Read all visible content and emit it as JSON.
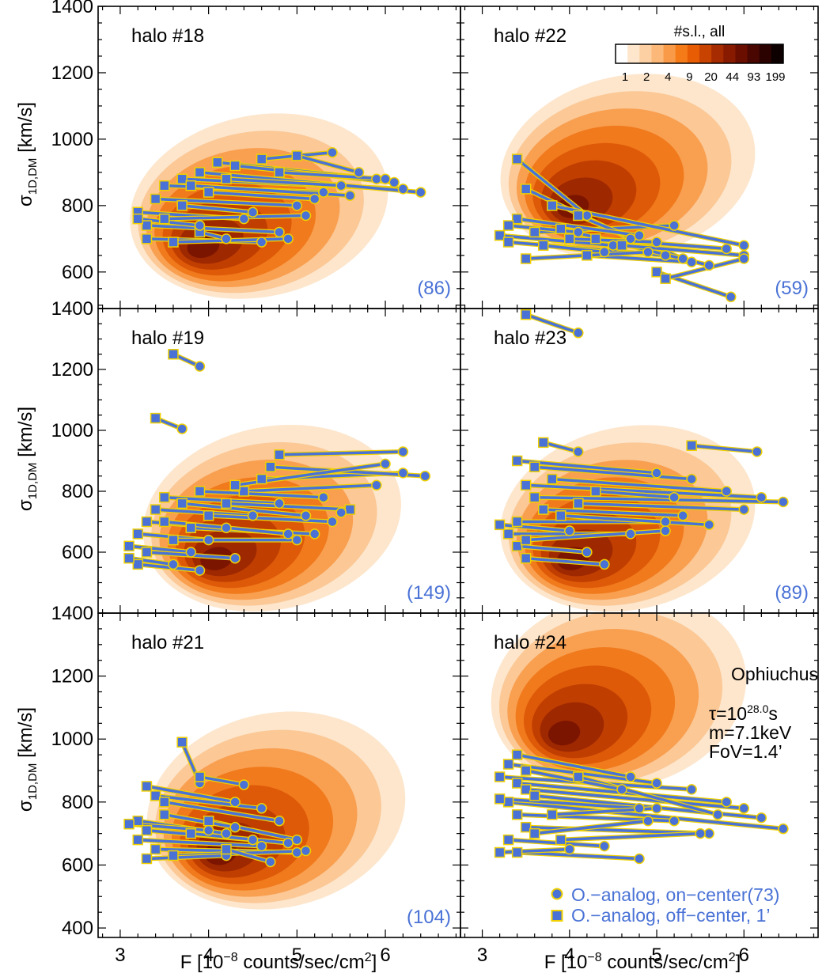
{
  "figure": {
    "x_axis_label": "F [10",
    "x_axis_label_exp": "−8",
    "x_axis_label_tail": " counts/sec/cm",
    "x_axis_label_sq": "2",
    "x_axis_label_end": "]",
    "y_axis_label": "σ",
    "y_axis_label_sub": "1D,DM",
    "y_axis_label_tail": " [km/s]",
    "colorbar_title": "#s.l., all",
    "colorbar_ticks": [
      "1",
      "2",
      "4",
      "9",
      "20",
      "44",
      "93",
      "199"
    ],
    "colorbar_colors": [
      "#ffffff",
      "#fde6cc",
      "#fcd0a3",
      "#fbb878",
      "#f99a48",
      "#f57a18",
      "#e85d04",
      "#c94300",
      "#a62b00",
      "#881a00",
      "#6a0e00",
      "#4a0600",
      "#2c0200",
      "#0d0000"
    ],
    "series_color": "#4a72d6",
    "series_edge": "#f0d000",
    "contour_colors": [
      "#fde6cc",
      "#fbc896",
      "#f99f50",
      "#f07a1c",
      "#de5a08",
      "#c03e00",
      "#9e2800",
      "#7c1500"
    ],
    "annotation_source": "Ophiuchus",
    "annotation_tau_prefix": "τ=10",
    "annotation_tau_exp": "28.0",
    "annotation_tau_unit": "s",
    "annotation_mass": "m=7.1keV",
    "annotation_fov": "FoV=1.4’",
    "legend_on": "O.−analog, on−center(73)",
    "legend_off": "O.−analog, off−center, 1’",
    "x_ticks": [
      "3",
      "4",
      "5",
      "6"
    ],
    "y_ticks_top": [
      "600",
      "800",
      "1000",
      "1200",
      "1400"
    ],
    "y_ticks_middle": [
      "600",
      "800",
      "1000",
      "1200",
      "1400"
    ],
    "y_ticks_bottom": [
      "400",
      "600",
      "800",
      "1000",
      "1200",
      "1400"
    ]
  },
  "chart_data": [
    {
      "type": "scatter",
      "panel": "top-left",
      "title": "halo #18",
      "count_label": "(86)",
      "xlim": [
        2.75,
        6.85
      ],
      "ylim": [
        490,
        1400
      ],
      "density_peak": {
        "x": 3.85,
        "y": 660
      },
      "pairs": [
        [
          3.2,
          780,
          4.4,
          760
        ],
        [
          3.3,
          740,
          4.8,
          720
        ],
        [
          3.4,
          820,
          5.0,
          800
        ],
        [
          3.5,
          860,
          5.3,
          840
        ],
        [
          3.7,
          880,
          6.2,
          850
        ],
        [
          3.9,
          900,
          6.4,
          840
        ],
        [
          4.1,
          930,
          5.9,
          880
        ],
        [
          4.2,
          880,
          5.5,
          860
        ],
        [
          3.3,
          700,
          4.6,
          690
        ],
        [
          3.6,
          690,
          4.9,
          700
        ],
        [
          3.7,
          800,
          4.5,
          780
        ],
        [
          4.0,
          840,
          5.2,
          820
        ],
        [
          4.3,
          920,
          6.1,
          870
        ],
        [
          4.6,
          940,
          5.4,
          960
        ],
        [
          5.0,
          950,
          5.7,
          900
        ],
        [
          4.8,
          900,
          6.0,
          880
        ],
        [
          3.5,
          760,
          5.1,
          770
        ],
        [
          3.9,
          720,
          4.2,
          700
        ],
        [
          3.2,
          760,
          3.9,
          740
        ],
        [
          3.8,
          860,
          5.6,
          830
        ]
      ]
    },
    {
      "type": "scatter",
      "panel": "top-right",
      "title": "halo #22",
      "count_label": "(59)",
      "xlim": [
        2.75,
        6.85
      ],
      "ylim": [
        490,
        1400
      ],
      "density_peak": {
        "x": 3.95,
        "y": 780
      },
      "pairs": [
        [
          3.4,
          940,
          4.2,
          770
        ],
        [
          3.5,
          850,
          4.7,
          700
        ],
        [
          3.2,
          710,
          4.5,
          680
        ],
        [
          3.3,
          690,
          5.1,
          650
        ],
        [
          3.6,
          720,
          5.2,
          740
        ],
        [
          3.8,
          800,
          6.0,
          680
        ],
        [
          4.1,
          770,
          5.3,
          640
        ],
        [
          3.9,
          730,
          5.6,
          620
        ],
        [
          4.3,
          700,
          5.8,
          670
        ],
        [
          4.6,
          680,
          6.0,
          650
        ],
        [
          5.0,
          600,
          5.85,
          525
        ],
        [
          3.4,
          760,
          4.8,
          710
        ],
        [
          3.7,
          680,
          4.4,
          660
        ],
        [
          4.2,
          650,
          5.4,
          630
        ],
        [
          3.5,
          640,
          4.9,
          660
        ],
        [
          4.0,
          700,
          5.0,
          690
        ],
        [
          3.3,
          740,
          4.1,
          720
        ],
        [
          5.1,
          580,
          6.0,
          640
        ]
      ]
    },
    {
      "type": "scatter",
      "panel": "middle-left",
      "title": "halo #19",
      "count_label": "(149)",
      "xlim": [
        2.75,
        6.85
      ],
      "ylim": [
        400,
        1400
      ],
      "density_peak": {
        "x": 4.0,
        "y": 560
      },
      "pairs": [
        [
          3.6,
          1250,
          3.9,
          1210
        ],
        [
          3.4,
          1040,
          3.7,
          1005
        ],
        [
          3.1,
          620,
          3.8,
          600
        ],
        [
          3.2,
          660,
          4.0,
          640
        ],
        [
          3.3,
          700,
          4.2,
          680
        ],
        [
          3.4,
          740,
          4.5,
          720
        ],
        [
          3.5,
          780,
          4.8,
          760
        ],
        [
          3.2,
          560,
          3.9,
          540
        ],
        [
          3.3,
          600,
          4.3,
          580
        ],
        [
          3.6,
          640,
          5.0,
          640
        ],
        [
          3.8,
          680,
          5.2,
          660
        ],
        [
          4.0,
          720,
          5.4,
          700
        ],
        [
          4.2,
          760,
          5.6,
          740
        ],
        [
          4.4,
          800,
          5.9,
          820
        ],
        [
          4.6,
          840,
          6.2,
          860
        ],
        [
          4.7,
          880,
          6.45,
          850
        ],
        [
          4.8,
          920,
          6.2,
          930
        ],
        [
          3.1,
          580,
          3.6,
          560
        ],
        [
          3.9,
          800,
          5.3,
          780
        ],
        [
          4.3,
          820,
          6.0,
          890
        ],
        [
          3.5,
          700,
          4.9,
          660
        ],
        [
          3.7,
          760,
          5.1,
          720
        ],
        [
          5.6,
          740,
          5.5,
          730
        ]
      ]
    },
    {
      "type": "scatter",
      "panel": "middle-right",
      "title": "halo #23",
      "count_label": "(89)",
      "xlim": [
        2.75,
        6.85
      ],
      "ylim": [
        400,
        1400
      ],
      "density_peak": {
        "x": 3.95,
        "y": 560
      },
      "pairs": [
        [
          3.5,
          1380,
          4.1,
          1320
        ],
        [
          5.4,
          950,
          6.15,
          930
        ],
        [
          3.7,
          960,
          4.1,
          930
        ],
        [
          3.4,
          900,
          5.0,
          860
        ],
        [
          3.6,
          880,
          5.4,
          840
        ],
        [
          3.8,
          840,
          5.8,
          800
        ],
        [
          3.5,
          820,
          6.2,
          780
        ],
        [
          3.6,
          780,
          6.45,
          765
        ],
        [
          3.7,
          740,
          5.3,
          720
        ],
        [
          3.4,
          700,
          5.1,
          700
        ],
        [
          3.3,
          660,
          4.7,
          660
        ],
        [
          3.4,
          620,
          4.2,
          600
        ],
        [
          3.5,
          580,
          4.4,
          560
        ],
        [
          3.2,
          690,
          4.0,
          670
        ],
        [
          3.9,
          720,
          5.6,
          690
        ],
        [
          4.1,
          760,
          6.0,
          740
        ],
        [
          4.3,
          800,
          5.2,
          780
        ],
        [
          3.5,
          640,
          5.1,
          670
        ]
      ]
    },
    {
      "type": "scatter",
      "panel": "bottom-left",
      "title": "halo #21",
      "count_label": "(104)",
      "xlim": [
        2.75,
        6.85
      ],
      "ylim": [
        370,
        1400
      ],
      "density_peak": {
        "x": 4.05,
        "y": 620
      },
      "pairs": [
        [
          3.7,
          990,
          3.9,
          860
        ],
        [
          3.9,
          880,
          4.4,
          855
        ],
        [
          3.3,
          850,
          4.3,
          800
        ],
        [
          3.4,
          820,
          4.6,
          780
        ],
        [
          3.5,
          800,
          4.8,
          740
        ],
        [
          3.2,
          740,
          4.2,
          700
        ],
        [
          3.3,
          710,
          4.5,
          680
        ],
        [
          3.1,
          730,
          4.0,
          710
        ],
        [
          3.2,
          680,
          4.6,
          660
        ],
        [
          3.4,
          650,
          5.0,
          640
        ],
        [
          3.6,
          630,
          5.1,
          645
        ],
        [
          3.3,
          620,
          4.2,
          630
        ],
        [
          3.8,
          700,
          4.9,
          670
        ],
        [
          4.0,
          740,
          5.0,
          680
        ],
        [
          3.5,
          760,
          4.3,
          720
        ],
        [
          4.2,
          650,
          4.7,
          610
        ]
      ]
    },
    {
      "type": "scatter",
      "panel": "bottom-right",
      "title": "halo #24",
      "count_label": "",
      "xlim": [
        2.75,
        6.85
      ],
      "ylim": [
        370,
        1400
      ],
      "density_peak": {
        "x": 3.85,
        "y": 1000
      },
      "pairs": [
        [
          3.4,
          950,
          4.7,
          880
        ],
        [
          3.3,
          920,
          5.0,
          860
        ],
        [
          3.2,
          880,
          5.4,
          840
        ],
        [
          3.4,
          860,
          5.8,
          800
        ],
        [
          3.5,
          840,
          6.0,
          780
        ],
        [
          3.6,
          820,
          6.2,
          750
        ],
        [
          3.3,
          800,
          6.45,
          715
        ],
        [
          3.2,
          810,
          4.8,
          780
        ],
        [
          3.4,
          760,
          5.2,
          740
        ],
        [
          3.5,
          720,
          5.6,
          700
        ],
        [
          3.3,
          680,
          4.4,
          660
        ],
        [
          3.4,
          640,
          4.8,
          620
        ],
        [
          3.2,
          640,
          4.0,
          650
        ],
        [
          3.6,
          700,
          4.9,
          740
        ],
        [
          3.9,
          680,
          5.5,
          700
        ],
        [
          3.8,
          760,
          5.0,
          780
        ],
        [
          4.1,
          880,
          5.7,
          760
        ],
        [
          3.5,
          900,
          4.6,
          840
        ]
      ]
    }
  ]
}
